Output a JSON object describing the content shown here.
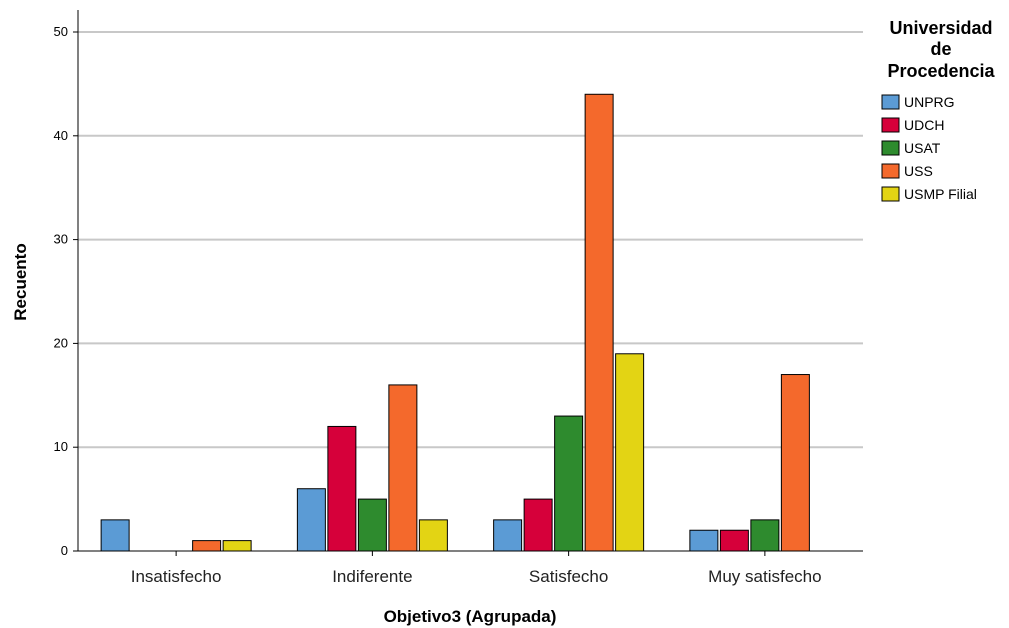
{
  "chart_data": {
    "type": "bar",
    "xlabel": "Objetivo3 (Agrupada)",
    "ylabel": "Recuento",
    "ylim": [
      0,
      50
    ],
    "yticks": [
      0,
      10,
      20,
      30,
      40,
      50
    ],
    "grid": true,
    "categories": [
      "Insatisfecho",
      "Indiferente",
      "Satisfecho",
      "Muy satisfecho"
    ],
    "legend": {
      "title_lines": [
        "Universidad",
        "de",
        "Procedencia"
      ],
      "placement": "right"
    },
    "series": [
      {
        "name": "UNPRG",
        "color": "#5b9bd5",
        "values": [
          3,
          6,
          3,
          2
        ]
      },
      {
        "name": "UDCH",
        "color": "#d6003a",
        "values": [
          0,
          12,
          5,
          2
        ]
      },
      {
        "name": "USAT",
        "color": "#2e8b2e",
        "values": [
          0,
          5,
          13,
          3
        ]
      },
      {
        "name": "USS",
        "color": "#f4692c",
        "values": [
          1,
          16,
          44,
          17
        ]
      },
      {
        "name": "USMP Filial",
        "color": "#e3d414",
        "values": [
          1,
          3,
          19,
          0
        ]
      }
    ]
  }
}
